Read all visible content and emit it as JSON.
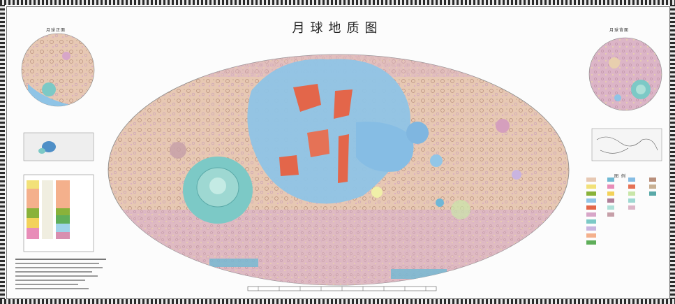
{
  "map": {
    "title": "月球地质图",
    "near_side_title": "月球正面",
    "far_side_title": "月球背面",
    "legend_title": "图 例"
  },
  "colors": {
    "highlands": "#e7c8b3",
    "maria_blue": "#8fc4e6",
    "basin_cyan": "#7cc9c6",
    "red_units": "#e3664a",
    "pink_units": "#d7a6c8",
    "craters": "#c9a893"
  }
}
